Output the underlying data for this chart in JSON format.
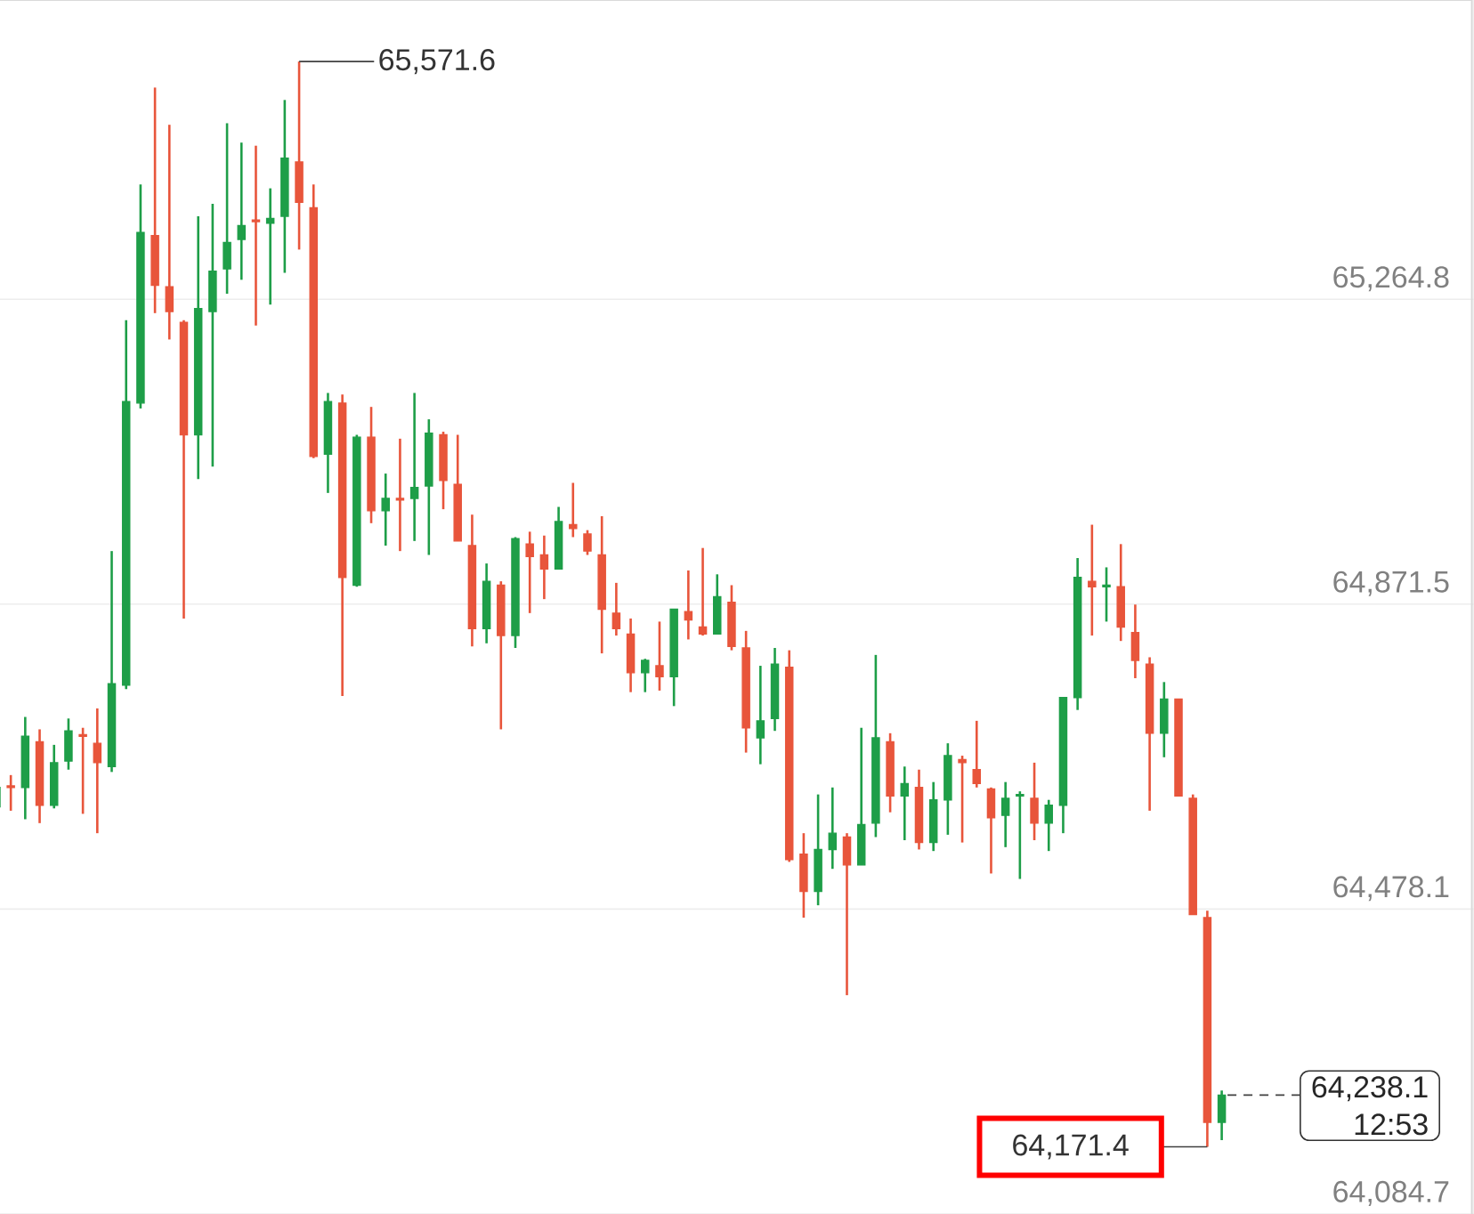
{
  "chart_data": {
    "type": "candlestick",
    "categories": [
      null,
      null,
      null,
      null,
      null,
      null,
      null,
      null,
      null,
      null,
      null,
      null,
      null,
      null,
      null,
      null,
      null,
      null,
      null,
      null,
      null,
      null,
      null,
      null,
      null,
      null,
      null,
      null,
      null,
      null,
      null,
      null,
      null,
      null,
      null,
      null,
      null,
      null,
      null,
      null,
      null,
      null,
      null,
      null,
      null,
      null,
      null,
      null,
      null,
      null,
      null,
      null,
      null,
      null,
      null,
      null,
      null,
      null,
      null,
      null,
      null,
      null,
      null,
      null,
      null,
      null,
      null,
      null,
      null,
      null,
      null,
      null,
      null,
      null,
      null,
      null,
      null,
      null,
      null,
      null,
      null,
      null,
      null,
      null,
      null,
      null
    ],
    "ohlc": [
      [
        64610,
        64640,
        64605,
        64635
      ],
      [
        64637,
        64651,
        64605,
        64635
      ],
      [
        64635,
        64726,
        64594,
        64701
      ],
      [
        64694,
        64710,
        64589,
        64612
      ],
      [
        64612,
        64690,
        64608,
        64667
      ],
      [
        64669,
        64724,
        64658,
        64708
      ],
      [
        64703,
        64712,
        64601,
        64701
      ],
      [
        64692,
        64737,
        64576,
        64667
      ],
      [
        64662,
        64940,
        64655,
        64769
      ],
      [
        64767,
        65238,
        64762,
        65133
      ],
      [
        65131,
        65413,
        65124,
        65351
      ],
      [
        65347,
        65538,
        65247,
        65283
      ],
      [
        65281,
        65490,
        65213,
        65249
      ],
      [
        65235,
        65238,
        64853,
        65090
      ],
      [
        65090,
        65372,
        65033,
        65253
      ],
      [
        65249,
        65388,
        65049,
        65301
      ],
      [
        65304,
        65492,
        65272,
        65338
      ],
      [
        65342,
        65467,
        65290,
        65360
      ],
      [
        65367,
        65463,
        65231,
        65365
      ],
      [
        65363,
        65408,
        65258,
        65369
      ],
      [
        65372,
        65522,
        65299,
        65447
      ],
      [
        65442,
        65571.6,
        65329,
        65390
      ],
      [
        65383,
        65413,
        65060,
        65062
      ],
      [
        65065,
        65144,
        65015,
        65133
      ],
      [
        65131,
        65142,
        64753,
        64906
      ],
      [
        64896,
        65090,
        64894,
        65087
      ],
      [
        65087,
        65126,
        64976,
        64992
      ],
      [
        64992,
        65040,
        64947,
        65008
      ],
      [
        65008,
        65085,
        64940,
        65006
      ],
      [
        65008,
        65144,
        64953,
        65022
      ],
      [
        65024,
        65110,
        64935,
        65092
      ],
      [
        65090,
        65094,
        64994,
        65031
      ],
      [
        65026,
        65090,
        64953,
        64953
      ],
      [
        64947,
        64987,
        64817,
        64840
      ],
      [
        64840,
        64924,
        64821,
        64901
      ],
      [
        64896,
        64901,
        64710,
        64831
      ],
      [
        64831,
        64958,
        64815,
        64956
      ],
      [
        64949,
        64965,
        64860,
        64933
      ],
      [
        64935,
        64960,
        64878,
        64917
      ],
      [
        64917,
        64997,
        64917,
        64978
      ],
      [
        64974,
        65028,
        64958,
        64969
      ],
      [
        64962,
        64967,
        64935,
        64940
      ],
      [
        64935,
        64985,
        64808,
        64865
      ],
      [
        64860,
        64899,
        64831,
        64840
      ],
      [
        64833,
        64853,
        64758,
        64783
      ],
      [
        64783,
        64801,
        64758,
        64799
      ],
      [
        64792,
        64849,
        64760,
        64778
      ],
      [
        64778,
        64865,
        64740,
        64865
      ],
      [
        64862,
        64915,
        64826,
        64851
      ],
      [
        64842,
        64944,
        64831,
        64833
      ],
      [
        64833,
        64910,
        64833,
        64881
      ],
      [
        64874,
        64896,
        64812,
        64817
      ],
      [
        64815,
        64837,
        64680,
        64712
      ],
      [
        64699,
        64792,
        64665,
        64721
      ],
      [
        64724,
        64815,
        64708,
        64794
      ],
      [
        64790,
        64812,
        64539,
        64542
      ],
      [
        64549,
        64576,
        64467,
        64501
      ],
      [
        64501,
        64626,
        64483,
        64555
      ],
      [
        64555,
        64635,
        64530,
        64576
      ],
      [
        64571,
        64576,
        64367,
        64535
      ],
      [
        64535,
        64712,
        64535,
        64587
      ],
      [
        64589,
        64806,
        64571,
        64699
      ],
      [
        64694,
        64705,
        64603,
        64624
      ],
      [
        64624,
        64662,
        64567,
        64640
      ],
      [
        64635,
        64658,
        64555,
        64564
      ],
      [
        64564,
        64642,
        64553,
        64619
      ],
      [
        64619,
        64692,
        64574,
        64676
      ],
      [
        64671,
        64676,
        64564,
        64667
      ],
      [
        64658,
        64721,
        64635,
        64640
      ],
      [
        64633,
        64635,
        64524,
        64596
      ],
      [
        64599,
        64642,
        64558,
        64621
      ],
      [
        64624,
        64630,
        64517,
        64626
      ],
      [
        64621,
        64667,
        64567,
        64589
      ],
      [
        64589,
        64619,
        64553,
        64612
      ],
      [
        64612,
        64751,
        64576,
        64751
      ],
      [
        64751,
        64931,
        64735,
        64906
      ],
      [
        64901,
        64974,
        64831,
        64894
      ],
      [
        64894,
        64919,
        64849,
        64896
      ],
      [
        64894,
        64949,
        64824,
        64842
      ],
      [
        64835,
        64871,
        64776,
        64799
      ],
      [
        64794,
        64803,
        64605,
        64705
      ],
      [
        64705,
        64771,
        64674,
        64749
      ],
      [
        64749,
        64749,
        64624,
        64624
      ],
      [
        64621,
        64626,
        64471,
        64471
      ],
      [
        64467,
        64476,
        64171.4,
        64203
      ],
      [
        64203,
        64244,
        64180,
        64238.1
      ]
    ],
    "colors": [
      "#1e9e48",
      "#e8553b",
      "#1e9e48",
      "#e8553b",
      "#1e9e48",
      "#1e9e48",
      "#e8553b",
      "#e8553b",
      "#1e9e48",
      "#1e9e48",
      "#1e9e48",
      "#e8553b",
      "#e8553b",
      "#e8553b",
      "#1e9e48",
      "#1e9e48",
      "#1e9e48",
      "#1e9e48",
      "#e8553b",
      "#1e9e48",
      "#1e9e48",
      "#e8553b",
      "#e8553b",
      "#1e9e48",
      "#e8553b",
      "#1e9e48",
      "#e8553b",
      "#1e9e48",
      "#e8553b",
      "#1e9e48",
      "#1e9e48",
      "#e8553b",
      "#e8553b",
      "#e8553b",
      "#1e9e48",
      "#e8553b",
      "#1e9e48",
      "#e8553b",
      "#e8553b",
      "#1e9e48",
      "#e8553b",
      "#e8553b",
      "#e8553b",
      "#e8553b",
      "#e8553b",
      "#1e9e48",
      "#e8553b",
      "#1e9e48",
      "#e8553b",
      "#e8553b",
      "#1e9e48",
      "#e8553b",
      "#e8553b",
      "#1e9e48",
      "#1e9e48",
      "#e8553b",
      "#e8553b",
      "#1e9e48",
      "#1e9e48",
      "#e8553b",
      "#1e9e48",
      "#1e9e48",
      "#e8553b",
      "#1e9e48",
      "#e8553b",
      "#1e9e48",
      "#1e9e48",
      "#e8553b",
      "#e8553b",
      "#e8553b",
      "#1e9e48",
      "#1e9e48",
      "#e8553b",
      "#1e9e48",
      "#1e9e48",
      "#1e9e48",
      "#e8553b",
      "#1e9e48",
      "#e8553b",
      "#e8553b",
      "#e8553b",
      "#1e9e48",
      "#e8553b",
      "#e8553b",
      "#e8553b",
      "#1e9e48"
    ],
    "ylim": [
      64084.7,
      65651
    ],
    "yticks": [
      {
        "value": 64084.7,
        "label": "64,084.7"
      },
      {
        "value": 64478.1,
        "label": "64,478.1"
      },
      {
        "value": 64871.5,
        "label": "64,871.5"
      },
      {
        "value": 65264.8,
        "label": "65,264.8"
      }
    ],
    "grid": "y",
    "tick_labels": "y",
    "annotations": [
      "65,571.6",
      "64,171.4",
      "64,238.1",
      "12:53"
    ]
  }
}
